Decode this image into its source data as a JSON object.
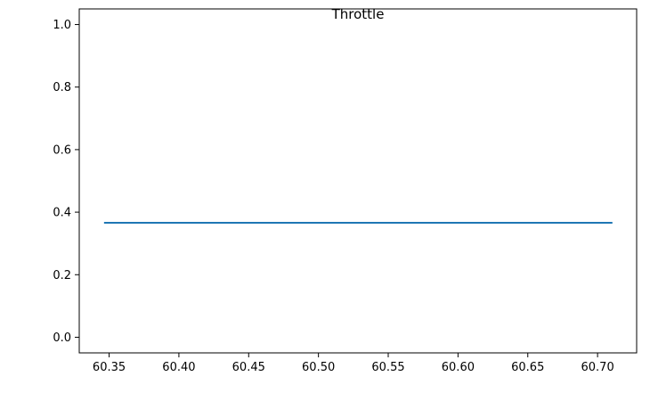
{
  "chart_data": {
    "type": "line",
    "title": "Throttle",
    "xlabel": "",
    "ylabel": "",
    "xlim": [
      60.3286,
      60.728
    ],
    "ylim": [
      -0.05,
      1.05
    ],
    "grid": false,
    "legend": "none",
    "x_ticks": [
      {
        "value": 60.35,
        "label": "60.35"
      },
      {
        "value": 60.4,
        "label": "60.40"
      },
      {
        "value": 60.45,
        "label": "60.45"
      },
      {
        "value": 60.5,
        "label": "60.50"
      },
      {
        "value": 60.55,
        "label": "60.55"
      },
      {
        "value": 60.6,
        "label": "60.60"
      },
      {
        "value": 60.65,
        "label": "60.65"
      },
      {
        "value": 60.7,
        "label": "60.70"
      }
    ],
    "y_ticks": [
      {
        "value": 0.0,
        "label": "0.0"
      },
      {
        "value": 0.2,
        "label": "0.2"
      },
      {
        "value": 0.4,
        "label": "0.4"
      },
      {
        "value": 0.6,
        "label": "0.6"
      },
      {
        "value": 0.8,
        "label": "0.8"
      },
      {
        "value": 1.0,
        "label": "1.0"
      }
    ],
    "series": [
      {
        "color": "#1f77b4",
        "x": [
          60.347,
          60.71
        ],
        "y": [
          0.366,
          0.366
        ]
      }
    ]
  }
}
